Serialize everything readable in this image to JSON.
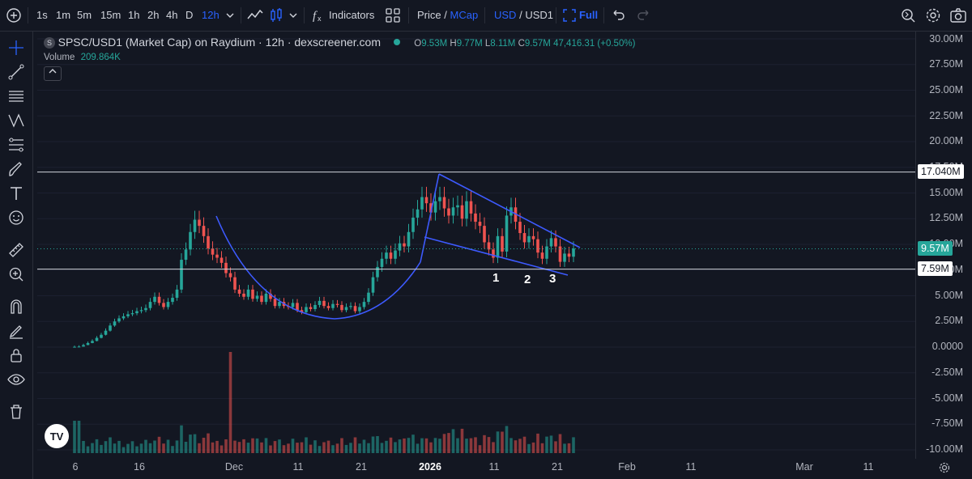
{
  "toolbar": {
    "intervals": [
      "1s",
      "1m",
      "5m",
      "15m",
      "1h",
      "2h",
      "4h",
      "D",
      "12h"
    ],
    "active_interval": "12h",
    "indicators_label": "Indicators",
    "price_label": "Price",
    "price_sep": "/",
    "mcap_label": "MCap",
    "currency_label": "USD",
    "currency_sep": "/",
    "pair_label": "USD1",
    "full_label": "Full",
    "accent": "#2962ff"
  },
  "legend": {
    "symbol_badge": "S",
    "title": "SPSC/USD1 (Market Cap) on Raydium · 12h · dexscreener.com",
    "o_label": "O",
    "o_value": "9.53M",
    "h_label": "H",
    "h_value": "9.77M",
    "l_label": "L",
    "l_value": "8.11M",
    "c_label": "C",
    "c_value": "9.57M",
    "change": "47,416.31 (+0.50%)",
    "volume_label": "Volume",
    "volume_value": "209.864K"
  },
  "price_axis": {
    "ticks": [
      "30.00M",
      "27.50M",
      "25.00M",
      "22.50M",
      "20.00M",
      "17.50M",
      "15.00M",
      "12.50M",
      "10.00M",
      "7.50M",
      "5.00M",
      "2.50M",
      "0.0000",
      "-2.50M",
      "-5.00M",
      "-7.50M",
      "-10.00M"
    ],
    "resistance_tag": "17.040M",
    "current_tag": "9.57M",
    "support_tag": "7.59M"
  },
  "time_axis": {
    "ticks": [
      "6",
      "16",
      "Dec",
      "11",
      "21",
      "2026",
      "11",
      "21",
      "Feb",
      "11",
      "Mar",
      "11"
    ]
  },
  "annotations": {
    "wave_labels": [
      "1",
      "2",
      "3"
    ]
  },
  "colors": {
    "up": "#26a69a",
    "down": "#ef5350",
    "drawing": "#3d5afe",
    "background": "#131722"
  },
  "chart_data": {
    "type": "candlestick",
    "pair": "SPSC/USD1",
    "interval": "12h",
    "ylim": [
      -10000000,
      30000000
    ],
    "resistance_level": 17040000,
    "support_level": 7590000,
    "current_value": 9570000
  }
}
